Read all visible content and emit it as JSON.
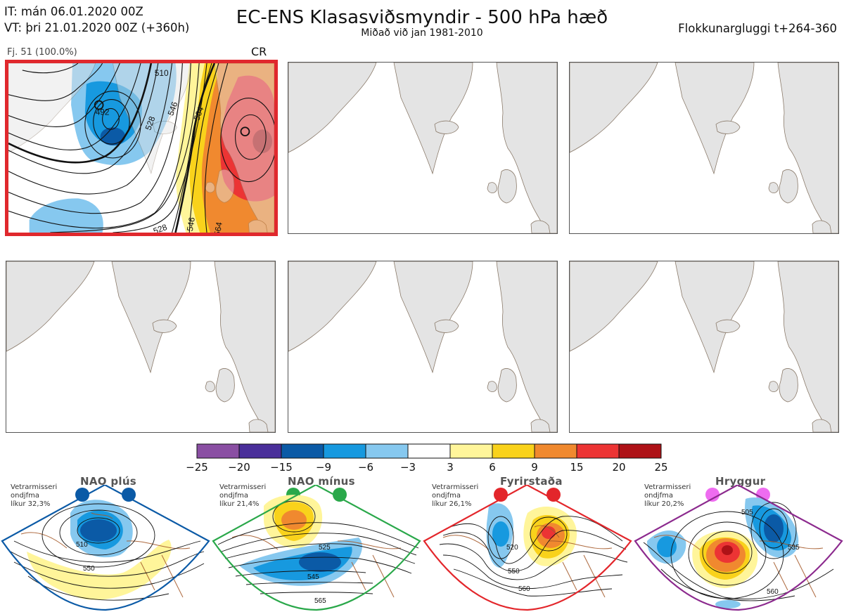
{
  "header": {
    "init_time": "IT: mán 06.01.2020 00Z",
    "valid_time": "VT: þri 21.01.2020 00Z  (+360h)",
    "title": "EC-ENS Klasasviðsmyndir - 500 hPa hæð",
    "subtitle": "Miðað við jan 1981-2010",
    "window": "Flokkunargluggi t+264-360"
  },
  "cluster": {
    "label": "Fj. 51 (100.0%)",
    "regime": "CR",
    "contour_labels": [
      "510",
      "492",
      "528",
      "546",
      "564",
      "546",
      "528",
      "564"
    ]
  },
  "colorbar": {
    "ticks": [
      "−25",
      "−20",
      "−15",
      "−9",
      "−6",
      "−3",
      "3",
      "6",
      "9",
      "15",
      "20",
      "25"
    ],
    "colors": [
      "#8a4fa3",
      "#4a2f9a",
      "#0b5aa6",
      "#1799df",
      "#86c8ef",
      "#ffffff",
      "#fff59a",
      "#f9d21b",
      "#f0892f",
      "#ec3434",
      "#ae1217"
    ]
  },
  "regimes": [
    {
      "title": "NAO plús",
      "note1": "Vetrarmisseri",
      "note2": "ondjfma",
      "note3": "líkur 32,3%",
      "labels": [
        "510",
        "550"
      ],
      "color": "#0b5aa6"
    },
    {
      "title": "NAO mínus",
      "note1": "Vetrarmisseri",
      "note2": "ondjfma",
      "note3": "líkur 21,4%",
      "labels": [
        "525",
        "545",
        "565"
      ],
      "color": "#2aa84a"
    },
    {
      "title": "Fyrirstaða",
      "note1": "Vetrarmisseri",
      "note2": "ondjfma",
      "note3": "líkur 26,1%",
      "labels": [
        "520",
        "550",
        "560"
      ],
      "color": "#e3262b"
    },
    {
      "title": "Hryggur",
      "note1": "Vetrarmisseri",
      "note2": "ondjfma",
      "note3": "líkur 20,2%",
      "labels": [
        "505",
        "535",
        "560"
      ],
      "color": "#8c2a8e"
    }
  ]
}
